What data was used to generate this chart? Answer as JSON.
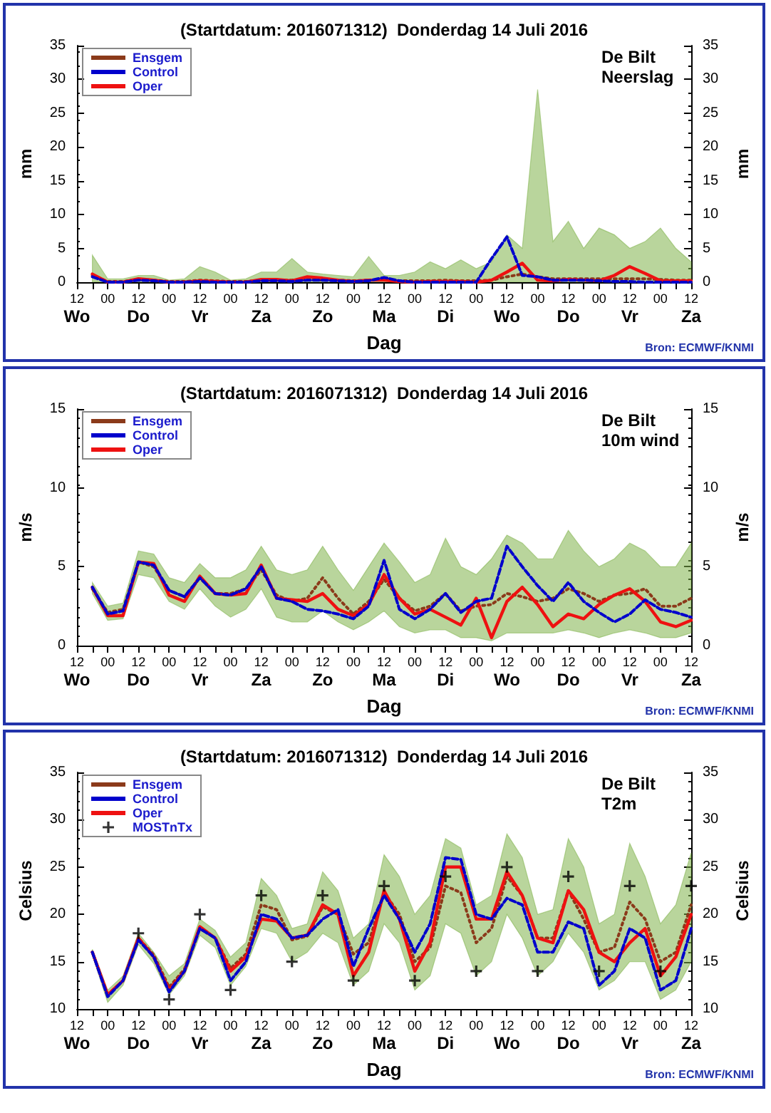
{
  "chart_data": [
    {
      "type": "line",
      "title": "(Startdatum: 2016071312)  Donderdag 14 Juli 2016",
      "xlabel": "Dag",
      "ylabel": "mm",
      "y2label": "mm",
      "annotations": [
        "De Bilt",
        "Neerslag",
        "Bron: ECMWF/KNMI"
      ],
      "legend": "top left",
      "grid": false,
      "categories": [
        "12\nWo",
        null,
        "00",
        null,
        "12\nDo",
        null,
        "00",
        null,
        "12\nVr",
        null,
        "00",
        null,
        "12\nZa",
        null,
        "00",
        null,
        "12\nZo",
        null,
        "00",
        null,
        "12\nMa",
        null,
        "00",
        null,
        "12\nDi",
        null,
        "00",
        null,
        "12\nWo",
        null,
        "00",
        null,
        "12\nDo",
        null,
        "00",
        null,
        "12\nVr",
        null,
        "00",
        null,
        "12\nZa"
      ],
      "ylim": [
        0,
        35
      ],
      "yticks": [
        0,
        5,
        10,
        15,
        20,
        25,
        30,
        35
      ],
      "y2lim": [
        0,
        35
      ],
      "y2ticks": [
        0,
        5,
        10,
        15,
        20,
        25,
        30,
        35
      ],
      "series": [
        {
          "name": "Ensgem",
          "color": "#8b3a1a",
          "line_style": "dotted",
          "values": [
            null,
            1,
            0.1,
            0.1,
            0.4,
            0.3,
            0.1,
            0.1,
            0.3,
            0.2,
            0.1,
            0.1,
            0.3,
            0.3,
            0.3,
            0.4,
            0.3,
            0.3,
            0.2,
            0.3,
            0.4,
            0.2,
            0.2,
            0.2,
            0.3,
            0.2,
            0.2,
            0.3,
            0.8,
            1.2,
            0.8,
            0.5,
            0.5,
            0.5,
            0.5,
            0.5,
            0.5,
            0.5,
            0.4,
            0.3,
            0.3
          ],
          "lower": [
            null,
            0,
            0,
            0,
            0,
            0,
            0,
            0,
            0,
            0,
            0,
            0,
            0,
            0,
            0,
            0,
            0,
            0,
            0,
            0,
            0,
            0,
            0,
            0,
            0,
            0,
            0,
            0,
            0,
            0,
            0,
            0,
            0,
            0,
            0,
            0,
            0,
            0,
            0,
            0,
            0
          ],
          "upper": [
            null,
            4,
            0.5,
            0.5,
            1,
            1,
            0.3,
            0.5,
            2.3,
            1.5,
            0.3,
            0.5,
            1.5,
            1.5,
            3.5,
            1.5,
            1.2,
            1,
            0.8,
            3.8,
            1,
            1,
            1.5,
            3,
            2,
            3.3,
            2,
            3,
            7,
            5,
            28.5,
            6,
            9,
            5,
            8,
            7,
            5,
            6,
            8,
            5,
            3
          ]
        },
        {
          "name": "Control",
          "color": "#0000cc",
          "line_style": "dashed",
          "values": [
            null,
            0.8,
            0,
            0,
            0.3,
            0.2,
            0,
            0,
            0.1,
            0,
            0,
            0,
            0.2,
            0.2,
            0.1,
            0.3,
            0.3,
            0.2,
            0.1,
            0.2,
            0.7,
            0.2,
            0,
            0,
            0,
            0,
            0,
            3.5,
            6.7,
            1,
            0.8,
            0.3,
            0.3,
            0.3,
            0.2,
            0.1,
            0.1,
            0,
            0,
            0,
            0
          ]
        },
        {
          "name": "Oper",
          "color": "#ee1111",
          "line_style": "solid",
          "values": [
            null,
            1.2,
            0,
            0,
            0.5,
            0.3,
            0,
            0,
            0.2,
            0.1,
            0,
            0,
            0.4,
            0.4,
            0.2,
            0.8,
            0.6,
            0.3,
            0.1,
            0.3,
            0.3,
            0.1,
            0,
            0.1,
            0.1,
            0.1,
            0,
            0.3,
            1.5,
            2.8,
            0.3,
            0.2,
            0.4,
            0.3,
            0.2,
            1,
            2.3,
            1.3,
            0.2,
            0.2,
            0.2
          ]
        }
      ]
    },
    {
      "type": "line",
      "title": "(Startdatum: 2016071312)  Donderdag 14 Juli 2016",
      "xlabel": "Dag",
      "ylabel": "m/s",
      "y2label": "m/s",
      "annotations": [
        "De Bilt",
        "10m wind",
        "Bron: ECMWF/KNMI"
      ],
      "legend": "top left",
      "grid": false,
      "categories": [
        "12\nWo",
        null,
        "00",
        null,
        "12\nDo",
        null,
        "00",
        null,
        "12\nVr",
        null,
        "00",
        null,
        "12\nZa",
        null,
        "00",
        null,
        "12\nZo",
        null,
        "00",
        null,
        "12\nMa",
        null,
        "00",
        null,
        "12\nDi",
        null,
        "00",
        null,
        "12\nWo",
        null,
        "00",
        null,
        "12\nDo",
        null,
        "00",
        null,
        "12\nVr",
        null,
        "00",
        null,
        "12\nZa"
      ],
      "ylim": [
        0,
        15
      ],
      "yticks": [
        0,
        5,
        10,
        15
      ],
      "y2lim": [
        0,
        15
      ],
      "y2ticks": [
        0,
        5,
        10,
        15
      ],
      "series": [
        {
          "name": "Ensgem",
          "color": "#8b3a1a",
          "line_style": "dotted",
          "values": [
            null,
            3.6,
            2.1,
            2.3,
            5.3,
            5,
            3.5,
            3.1,
            4.3,
            3.3,
            3.3,
            3.6,
            4.8,
            3.2,
            2.8,
            3,
            4.3,
            3,
            2,
            2.8,
            4.2,
            3,
            2.2,
            2.5,
            3.3,
            2.2,
            2.5,
            2.6,
            3.3,
            3.1,
            2.8,
            3,
            3.6,
            3.3,
            2.8,
            3.2,
            3.3,
            3.6,
            2.5,
            2.5,
            3
          ],
          "lower": [
            null,
            3.3,
            1.6,
            1.7,
            4.5,
            4.3,
            2.8,
            2.3,
            3.6,
            2.5,
            1.8,
            2.3,
            3.6,
            1.8,
            1.5,
            1.5,
            2.2,
            1.5,
            1,
            1.5,
            2.2,
            1.2,
            0.8,
            1,
            1,
            0.5,
            0.5,
            0.3,
            0.8,
            0.8,
            0.8,
            0.8,
            1,
            0.8,
            0.5,
            0.8,
            1,
            0.8,
            0.5,
            0.5,
            0.8
          ],
          "upper": [
            null,
            4,
            2.5,
            2.7,
            6,
            5.8,
            4.3,
            4,
            5.2,
            4.3,
            4.3,
            4.8,
            6.3,
            4.8,
            4.5,
            4.8,
            6.3,
            4.8,
            3.5,
            5,
            6.5,
            5.3,
            4,
            4.5,
            6.8,
            5,
            4.5,
            5.5,
            7,
            6.5,
            5.5,
            5.5,
            7.3,
            6,
            5,
            5.5,
            6.5,
            6,
            5,
            5,
            6.5
          ]
        },
        {
          "name": "Control",
          "color": "#0000cc",
          "line_style": "dashed",
          "values": [
            null,
            3.7,
            2,
            2.2,
            5.3,
            5.1,
            3.5,
            3.1,
            4.3,
            3.3,
            3.2,
            3.6,
            5,
            3,
            2.8,
            2.3,
            2.2,
            2,
            1.7,
            2.5,
            5.4,
            2.3,
            1.7,
            2.3,
            3.3,
            2.1,
            2.8,
            3,
            6.3,
            5,
            3.8,
            2.8,
            4,
            2.8,
            2.1,
            1.5,
            2,
            2.9,
            2.3,
            2.1,
            1.8
          ]
        },
        {
          "name": "Oper",
          "color": "#ee1111",
          "line_style": "solid",
          "values": [
            null,
            3.7,
            1.9,
            1.9,
            5.3,
            5.2,
            3.2,
            2.8,
            4.4,
            3.3,
            3.2,
            3.3,
            5.1,
            3,
            2.9,
            2.8,
            3.3,
            2.3,
            1.9,
            2.6,
            4.5,
            3,
            2,
            2.3,
            1.8,
            1.3,
            3,
            0.5,
            2.8,
            3.7,
            2.6,
            1.2,
            2,
            1.7,
            2.6,
            3.2,
            3.6,
            2.8,
            1.5,
            1.2,
            1.6
          ]
        }
      ]
    },
    {
      "type": "line",
      "title": "(Startdatum: 2016071312)  Donderdag 14 Juli 2016",
      "xlabel": "Dag",
      "ylabel": "Celsius",
      "y2label": "Celsius",
      "annotations": [
        "De Bilt",
        "T2m",
        "Bron: ECMWF/KNMI"
      ],
      "legend": "top left",
      "grid": false,
      "categories": [
        "12\nWo",
        null,
        "00",
        null,
        "12\nDo",
        null,
        "00",
        null,
        "12\nVr",
        null,
        "00",
        null,
        "12\nZa",
        null,
        "00",
        null,
        "12\nZo",
        null,
        "00",
        null,
        "12\nMa",
        null,
        "00",
        null,
        "12\nDi",
        null,
        "00",
        null,
        "12\nWo",
        null,
        "00",
        null,
        "12\nDo",
        null,
        "00",
        null,
        "12\nVr",
        null,
        "00",
        null,
        "12\nZa"
      ],
      "ylim": [
        10,
        35
      ],
      "yticks": [
        10,
        15,
        20,
        25,
        30,
        35
      ],
      "y2lim": [
        10,
        35
      ],
      "y2ticks": [
        10,
        15,
        20,
        25,
        30,
        35
      ],
      "series": [
        {
          "name": "Ensgem",
          "color": "#8b3a1a",
          "line_style": "dotted",
          "values": [
            null,
            16,
            11.5,
            13,
            17.5,
            15.7,
            12.3,
            14.2,
            18.5,
            17.5,
            14.3,
            15.8,
            21,
            20.5,
            17.3,
            17.7,
            20.8,
            20,
            15.8,
            17,
            22.3,
            20,
            15,
            16.5,
            23,
            22.3,
            17,
            18.5,
            24,
            22,
            17.5,
            17.5,
            22.5,
            19.5,
            16,
            16.5,
            21.3,
            19.5,
            15,
            16,
            21
          ],
          "lower": [
            null,
            15.7,
            10.7,
            12.5,
            16.8,
            14.8,
            11.5,
            13.5,
            17.8,
            16.5,
            12.5,
            14.5,
            18.5,
            18,
            15,
            16,
            18,
            17,
            12.5,
            14,
            19,
            17,
            12,
            13.5,
            19,
            18,
            13.5,
            15,
            20,
            17.5,
            13.5,
            15,
            18,
            16,
            12,
            13,
            15,
            15,
            11,
            12,
            15
          ],
          "upper": [
            null,
            16.3,
            12,
            13.5,
            18,
            16,
            13.5,
            14.8,
            19.5,
            18.3,
            15.5,
            17,
            23.8,
            22,
            18.5,
            19,
            24.5,
            22.5,
            17.5,
            19,
            26.3,
            24,
            20,
            22,
            28,
            27,
            21,
            22,
            28.5,
            26,
            20,
            20.5,
            28,
            25,
            19,
            20,
            27.5,
            24,
            19,
            21,
            26.5
          ]
        },
        {
          "name": "Control",
          "color": "#0000cc",
          "line_style": "dashed",
          "values": [
            null,
            16,
            11.3,
            13,
            17.3,
            15.5,
            11.8,
            14,
            18.5,
            17.5,
            13,
            15,
            20,
            19.5,
            17.5,
            17.8,
            19.5,
            20.5,
            14.5,
            18.5,
            22,
            19.5,
            16,
            19,
            26,
            25.8,
            20,
            19.5,
            21.7,
            21,
            16,
            16,
            19.2,
            18.5,
            12.5,
            14,
            18.5,
            17.5,
            12,
            13,
            18.5
          ]
        },
        {
          "name": "Oper",
          "color": "#ee1111",
          "line_style": "solid",
          "values": [
            null,
            16,
            11.5,
            13,
            17.5,
            15.5,
            12,
            14,
            18.7,
            17.5,
            14,
            15.5,
            19.5,
            19.3,
            17.5,
            17.8,
            21,
            20,
            13.5,
            16,
            22.5,
            19.5,
            14,
            17,
            25,
            25,
            19.5,
            19.5,
            24.5,
            22,
            17.5,
            17,
            22.5,
            20.5,
            16,
            15,
            17,
            18.5,
            13.5,
            15.5,
            20
          ]
        },
        {
          "name": "MOSTnTx",
          "type": "scatter",
          "color": "#000000",
          "marker": "cross",
          "values": [
            null,
            null,
            null,
            null,
            18,
            null,
            11,
            null,
            20,
            null,
            12,
            null,
            22,
            null,
            15,
            null,
            22,
            null,
            13,
            null,
            23,
            null,
            13,
            null,
            24,
            null,
            14,
            null,
            25,
            null,
            14,
            null,
            24,
            null,
            14,
            null,
            23,
            null,
            14,
            null,
            23
          ]
        }
      ]
    }
  ]
}
